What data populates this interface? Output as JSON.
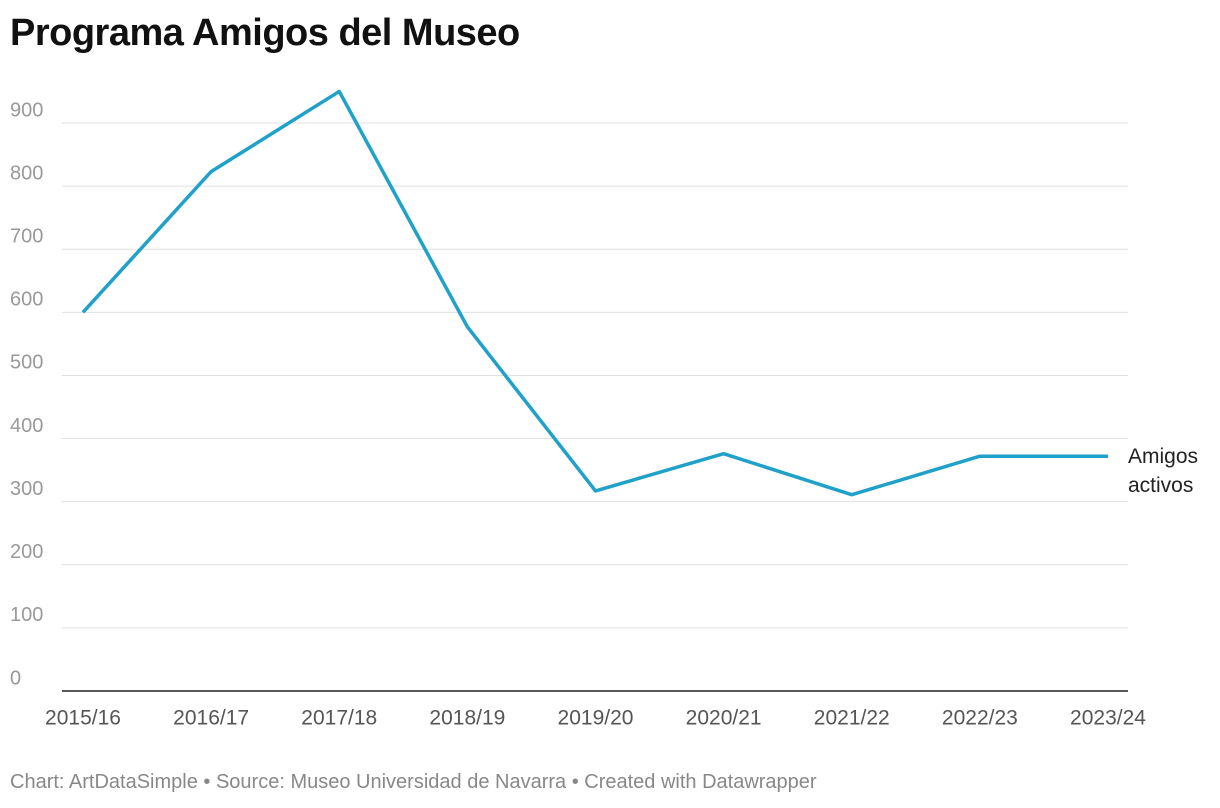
{
  "chart_data": {
    "type": "line",
    "title": "Programa Amigos del Museo",
    "categories": [
      "2015/16",
      "2016/17",
      "2017/18",
      "2018/19",
      "2019/20",
      "2020/21",
      "2021/22",
      "2022/23",
      "2023/24"
    ],
    "series": [
      {
        "name": "Amigos activos",
        "color": "#1fa1c9",
        "values": [
          600,
          823,
          950,
          577,
          317,
          376,
          311,
          372,
          372
        ]
      }
    ],
    "ylim": [
      0,
      950
    ],
    "yticks": [
      0,
      100,
      200,
      300,
      400,
      500,
      600,
      700,
      800,
      900
    ],
    "grid": true,
    "footer": "Chart: ArtDataSimple • Source: Museo Universidad de Navarra • Created with Datawrapper"
  }
}
